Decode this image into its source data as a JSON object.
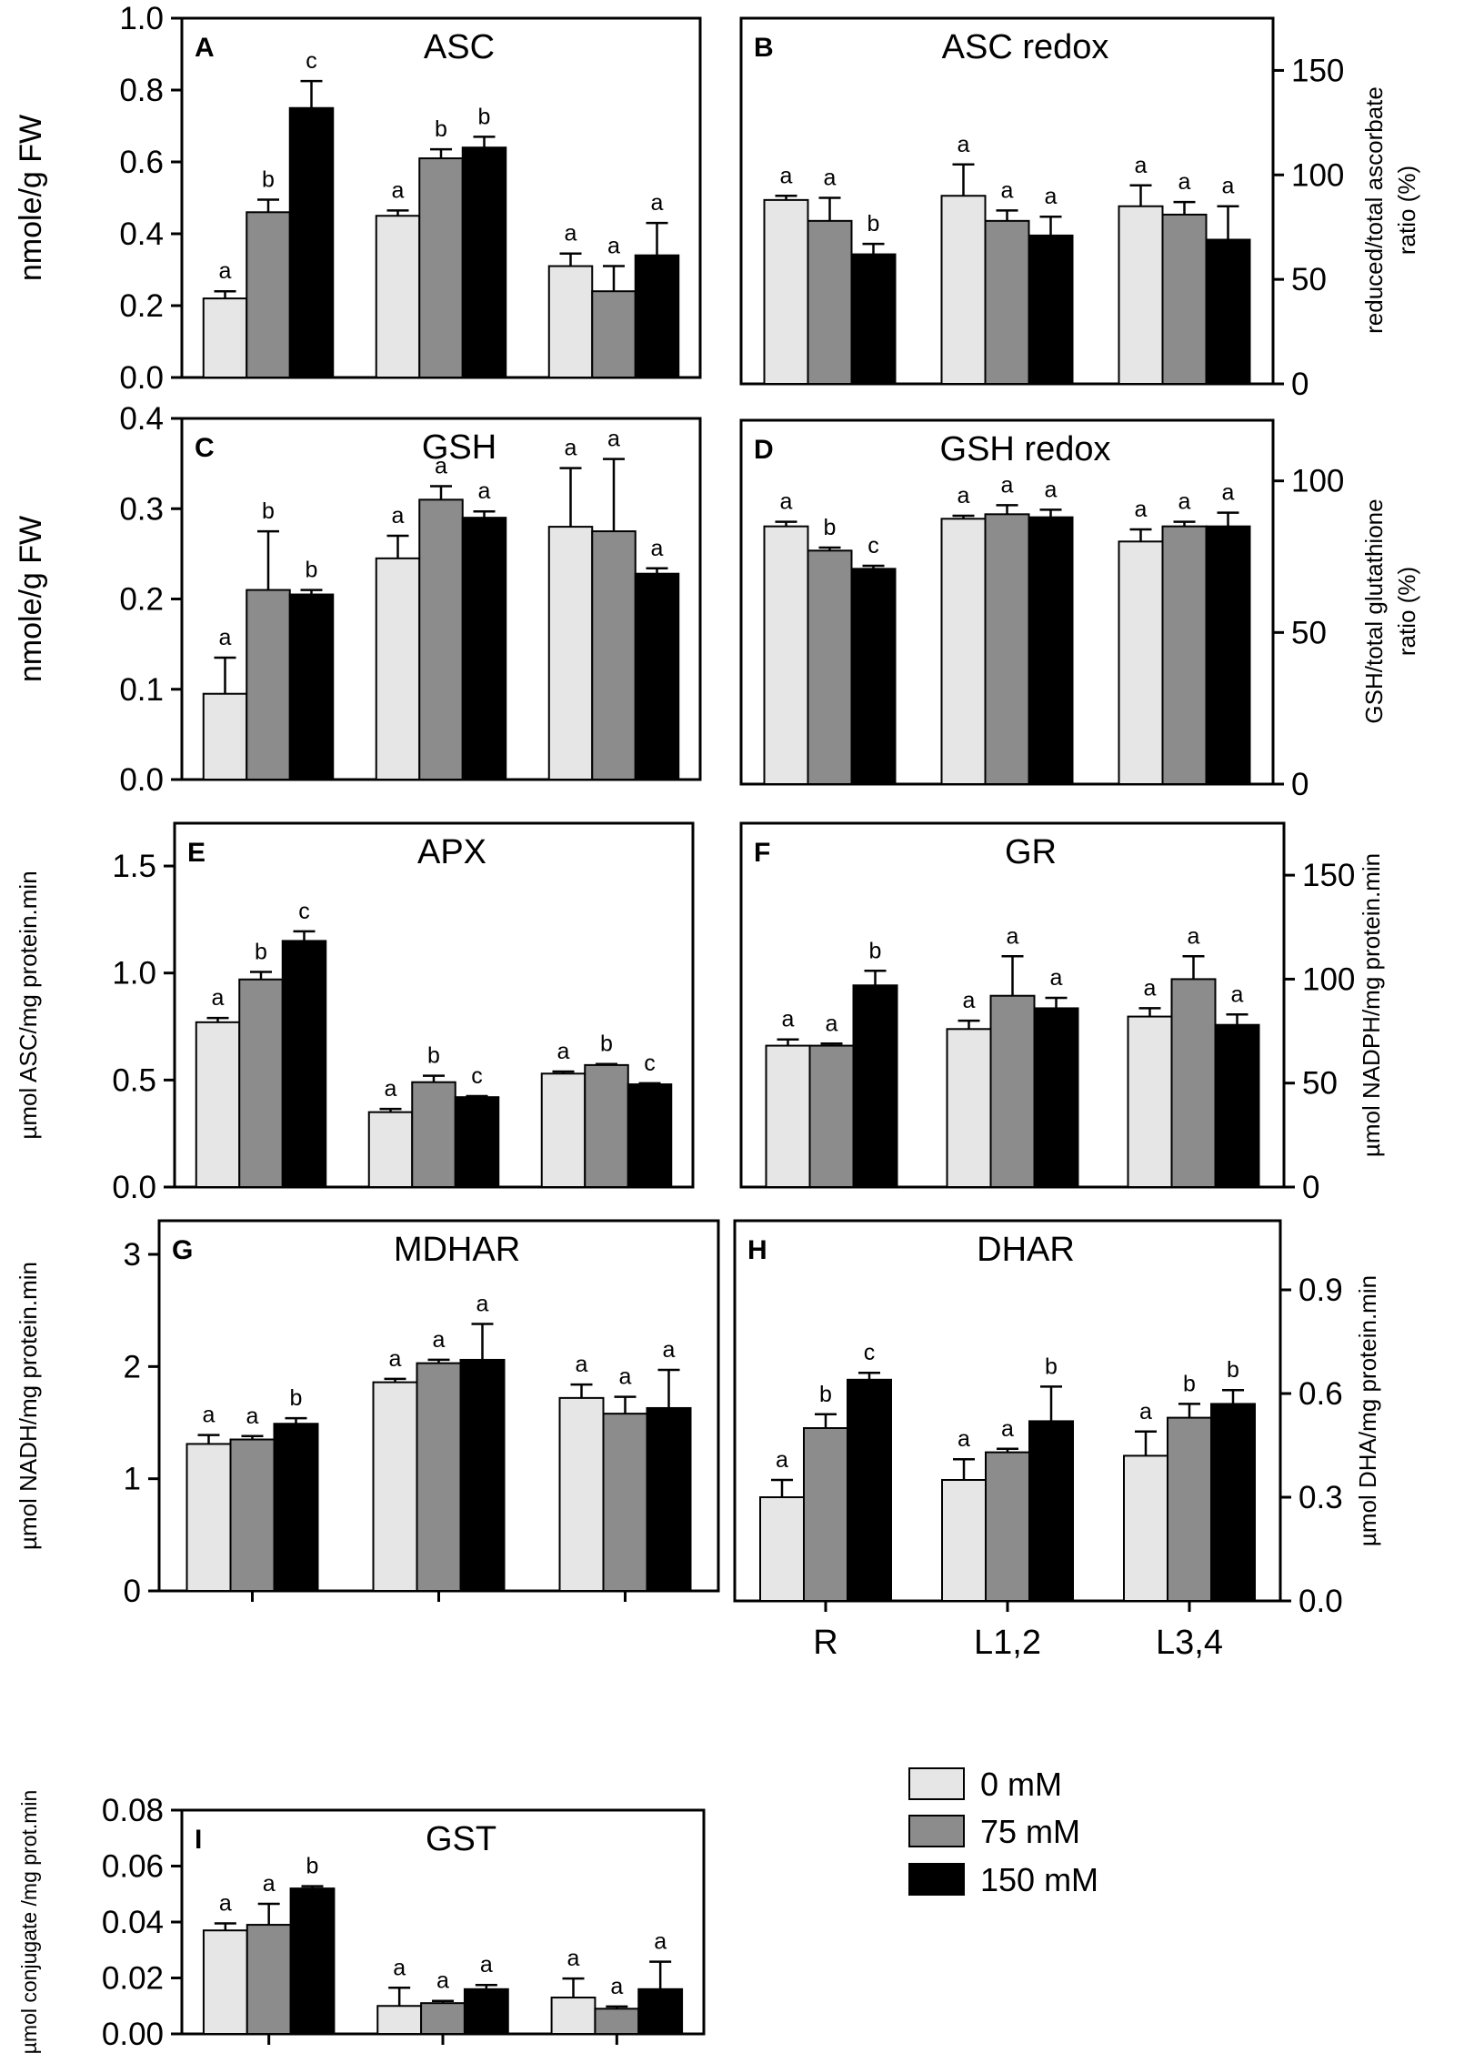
{
  "colors": {
    "0 mM": "#e6e6e6",
    "75 mM": "#8c8c8c",
    "150 mM": "#000000"
  },
  "legend": [
    "0 mM",
    "75 mM",
    "150 mM"
  ],
  "chart_data": [
    {
      "id": "A",
      "label": "A",
      "type": "bar",
      "title": "ASC",
      "ylabel": "nmole/g FW",
      "ylim": [
        0,
        1.0
      ],
      "ticks": [
        "0.0",
        "0.2",
        "0.4",
        "0.6",
        "0.8",
        "1.0"
      ],
      "tick_values": [
        0,
        0.2,
        0.4,
        0.6,
        0.8,
        1.0
      ],
      "axis_side": "left",
      "categories": [
        "R",
        "L1,2",
        "L3,4"
      ],
      "series": [
        {
          "name": "0 mM",
          "values": [
            0.22,
            0.45,
            0.31
          ],
          "errors": [
            0.02,
            0.015,
            0.035
          ],
          "letters": [
            "a",
            "a",
            "a"
          ]
        },
        {
          "name": "75 mM",
          "values": [
            0.46,
            0.61,
            0.24
          ],
          "errors": [
            0.035,
            0.025,
            0.07
          ],
          "letters": [
            "b",
            "b",
            "a"
          ]
        },
        {
          "name": "150 mM",
          "values": [
            0.75,
            0.64,
            0.34
          ],
          "errors": [
            0.075,
            0.03,
            0.09
          ],
          "letters": [
            "c",
            "b",
            "a"
          ]
        }
      ]
    },
    {
      "id": "B",
      "label": "B",
      "type": "bar",
      "title": "ASC redox",
      "ylabel": "reduced/total ascorbate ratio (%)",
      "ylabel_lines": [
        "reduced/total ascorbate",
        "ratio (%)"
      ],
      "ylim": [
        0,
        175
      ],
      "ticks": [
        "0",
        "50",
        "100",
        "150"
      ],
      "tick_values": [
        0,
        50,
        100,
        150
      ],
      "axis_side": "right",
      "categories": [
        "R",
        "L1,2",
        "L3,4"
      ],
      "series": [
        {
          "name": "0 mM",
          "values": [
            88,
            90,
            85
          ],
          "errors": [
            2,
            15,
            10
          ],
          "letters": [
            "a",
            "a",
            "a"
          ]
        },
        {
          "name": "75 mM",
          "values": [
            78,
            78,
            81
          ],
          "errors": [
            11,
            5,
            6
          ],
          "letters": [
            "a",
            "a",
            "a"
          ]
        },
        {
          "name": "150 mM",
          "values": [
            62,
            71,
            69
          ],
          "errors": [
            5,
            9,
            16
          ],
          "letters": [
            "b",
            "a",
            "a"
          ]
        }
      ]
    },
    {
      "id": "C",
      "label": "C",
      "type": "bar",
      "title": "GSH",
      "ylabel": "nmole/g FW",
      "ylim": [
        0,
        0.4
      ],
      "ticks": [
        "0.0",
        "0.1",
        "0.2",
        "0.3",
        "0.4"
      ],
      "tick_values": [
        0,
        0.1,
        0.2,
        0.3,
        0.4
      ],
      "axis_side": "left",
      "categories": [
        "R",
        "L1,2",
        "L3,4"
      ],
      "series": [
        {
          "name": "0 mM",
          "values": [
            0.095,
            0.245,
            0.28
          ],
          "errors": [
            0.04,
            0.025,
            0.065
          ],
          "letters": [
            "a",
            "a",
            "a"
          ]
        },
        {
          "name": "75 mM",
          "values": [
            0.21,
            0.31,
            0.275
          ],
          "errors": [
            0.065,
            0.015,
            0.08
          ],
          "letters": [
            "b",
            "a",
            "a"
          ]
        },
        {
          "name": "150 mM",
          "values": [
            0.205,
            0.29,
            0.228
          ],
          "errors": [
            0.005,
            0.007,
            0.006
          ],
          "letters": [
            "b",
            "a",
            "a"
          ]
        }
      ]
    },
    {
      "id": "D",
      "label": "D",
      "type": "bar",
      "title": "GSH redox",
      "ylabel": "GSH/total glutathione ratio (%)",
      "ylabel_lines": [
        "GSH/total glutathione",
        "ratio (%)"
      ],
      "ylim": [
        0,
        120
      ],
      "ticks": [
        "0",
        "50",
        "100"
      ],
      "tick_values": [
        0,
        50,
        100
      ],
      "axis_side": "right",
      "categories": [
        "R",
        "L1,2",
        "L3,4"
      ],
      "series": [
        {
          "name": "0 mM",
          "values": [
            85,
            87.5,
            80
          ],
          "errors": [
            1.5,
            1,
            4
          ],
          "letters": [
            "a",
            "a",
            "a"
          ]
        },
        {
          "name": "75 mM",
          "values": [
            77,
            89,
            85
          ],
          "errors": [
            1,
            3,
            1.5
          ],
          "letters": [
            "b",
            "a",
            "a"
          ]
        },
        {
          "name": "150 mM",
          "values": [
            71,
            88,
            85
          ],
          "errors": [
            1,
            2.5,
            4.5
          ],
          "letters": [
            "c",
            "a",
            "a"
          ]
        }
      ]
    },
    {
      "id": "E",
      "label": "E",
      "type": "bar",
      "title": "APX",
      "ylabel": "µmol ASC/mg protein.min",
      "ylim": [
        0,
        1.7
      ],
      "ticks": [
        "0.0",
        "0.5",
        "1.0",
        "1.5"
      ],
      "tick_values": [
        0,
        0.5,
        1.0,
        1.5
      ],
      "axis_side": "left",
      "categories": [
        "R",
        "L1,2",
        "L3,4"
      ],
      "series": [
        {
          "name": "0 mM",
          "values": [
            0.77,
            0.35,
            0.53
          ],
          "errors": [
            0.02,
            0.015,
            0.01
          ],
          "letters": [
            "a",
            "a",
            "a"
          ]
        },
        {
          "name": "75 mM",
          "values": [
            0.97,
            0.49,
            0.57
          ],
          "errors": [
            0.035,
            0.03,
            0.005
          ],
          "letters": [
            "b",
            "b",
            "b"
          ]
        },
        {
          "name": "150 mM",
          "values": [
            1.15,
            0.42,
            0.48
          ],
          "errors": [
            0.045,
            0.005,
            0.005
          ],
          "letters": [
            "c",
            "c",
            "c"
          ]
        }
      ]
    },
    {
      "id": "F",
      "label": "F",
      "type": "bar",
      "title": "GR",
      "ylabel": "µmol NADPH/mg protein.min",
      "ylim": [
        0,
        175
      ],
      "ticks": [
        "0",
        "50",
        "100",
        "150"
      ],
      "tick_values": [
        0,
        50,
        100,
        150
      ],
      "axis_side": "right",
      "categories": [
        "R",
        "L1,2",
        "L3,4"
      ],
      "series": [
        {
          "name": "0 mM",
          "values": [
            68,
            76,
            82
          ],
          "errors": [
            3,
            4,
            4
          ],
          "letters": [
            "a",
            "a",
            "a"
          ]
        },
        {
          "name": "75 mM",
          "values": [
            68,
            92,
            100
          ],
          "errors": [
            1,
            19,
            11
          ],
          "letters": [
            "a",
            "a",
            "a"
          ]
        },
        {
          "name": "150 mM",
          "values": [
            97,
            86,
            78
          ],
          "errors": [
            7,
            5,
            5
          ],
          "letters": [
            "b",
            "a",
            "a"
          ]
        }
      ]
    },
    {
      "id": "G",
      "label": "G",
      "type": "bar",
      "title": "MDHAR",
      "ylabel": "µmol NADH/mg protein.min",
      "ylim": [
        0,
        3.3
      ],
      "ticks": [
        "0",
        "1",
        "2",
        "3"
      ],
      "tick_values": [
        0,
        1,
        2,
        3
      ],
      "axis_side": "left",
      "categories": [
        "R",
        "L1,2",
        "L3,4"
      ],
      "series": [
        {
          "name": "0 mM",
          "values": [
            1.31,
            1.86,
            1.72
          ],
          "errors": [
            0.08,
            0.03,
            0.12
          ],
          "letters": [
            "a",
            "a",
            "a"
          ]
        },
        {
          "name": "75 mM",
          "values": [
            1.35,
            2.03,
            1.58
          ],
          "errors": [
            0.03,
            0.03,
            0.15
          ],
          "letters": [
            "a",
            "a",
            "a"
          ]
        },
        {
          "name": "150 mM",
          "values": [
            1.49,
            2.06,
            1.63
          ],
          "errors": [
            0.05,
            0.32,
            0.34
          ],
          "letters": [
            "b",
            "a",
            "a"
          ]
        }
      ]
    },
    {
      "id": "H",
      "label": "H",
      "type": "bar",
      "title": "DHAR",
      "ylabel": "µmol DHA/mg protein.min",
      "ylim": [
        0,
        1.1
      ],
      "ticks": [
        "0.0",
        "0.3",
        "0.6",
        "0.9"
      ],
      "tick_values": [
        0,
        0.3,
        0.6,
        0.9
      ],
      "axis_side": "right",
      "categories": [
        "R",
        "L1,2",
        "L3,4"
      ],
      "series": [
        {
          "name": "0 mM",
          "values": [
            0.3,
            0.35,
            0.42
          ],
          "errors": [
            0.05,
            0.06,
            0.07
          ],
          "letters": [
            "a",
            "a",
            "a"
          ]
        },
        {
          "name": "75 mM",
          "values": [
            0.5,
            0.43,
            0.53
          ],
          "errors": [
            0.04,
            0.01,
            0.04
          ],
          "letters": [
            "b",
            "a",
            "b"
          ]
        },
        {
          "name": "150 mM",
          "values": [
            0.64,
            0.52,
            0.57
          ],
          "errors": [
            0.02,
            0.1,
            0.04
          ],
          "letters": [
            "c",
            "b",
            "b"
          ]
        }
      ]
    },
    {
      "id": "I",
      "label": "I",
      "type": "bar",
      "title": "GST",
      "ylabel": "µmol conjugate /mg prot.min",
      "ylim": [
        0,
        0.08
      ],
      "ticks": [
        "0.00",
        "0.02",
        "0.04",
        "0.06",
        "0.08"
      ],
      "tick_values": [
        0,
        0.02,
        0.04,
        0.06,
        0.08
      ],
      "axis_side": "left",
      "categories": [
        "R",
        "L1,2",
        "L3,4"
      ],
      "series": [
        {
          "name": "0 mM",
          "values": [
            0.037,
            0.01,
            0.013
          ],
          "errors": [
            0.0025,
            0.0065,
            0.0068
          ],
          "letters": [
            "a",
            "a",
            "a"
          ]
        },
        {
          "name": "75 mM",
          "values": [
            0.039,
            0.011,
            0.009
          ],
          "errors": [
            0.0075,
            0.0008,
            0.0008
          ],
          "letters": [
            "a",
            "a",
            "a"
          ]
        },
        {
          "name": "150 mM",
          "values": [
            0.052,
            0.016,
            0.016
          ],
          "errors": [
            0.0008,
            0.0015,
            0.0098
          ],
          "letters": [
            "b",
            "a",
            "a"
          ]
        }
      ]
    }
  ]
}
